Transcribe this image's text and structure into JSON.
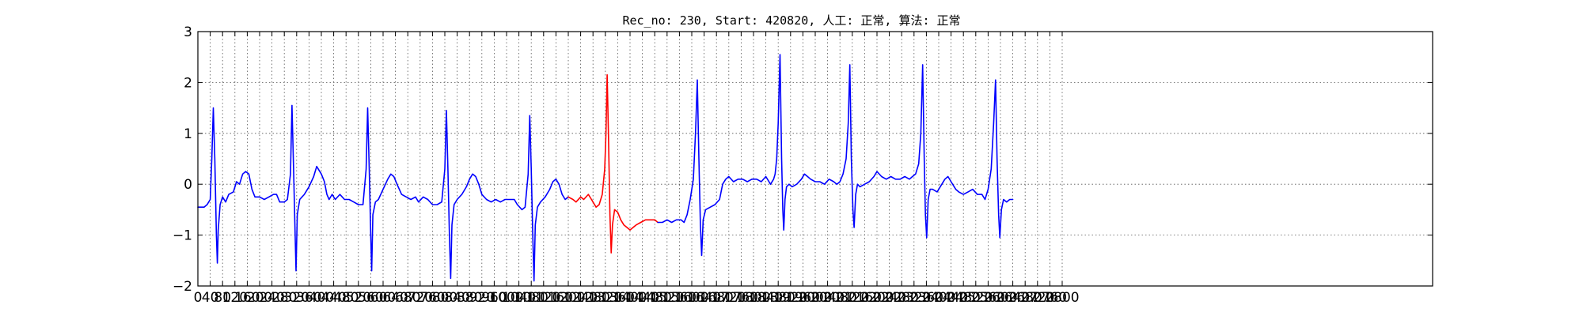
{
  "chart_data": {
    "type": "line",
    "title": "Rec_no: 230, Start: 420820, 人工: 正常, 算法: 正常",
    "xlabel": "",
    "ylabel": "",
    "xlim": [
      0,
      4000
    ],
    "ylim": [
      -2,
      3
    ],
    "grid": true,
    "yticks": [
      -2,
      -1,
      0,
      1,
      2,
      3
    ],
    "ytick_labels": [
      "−2",
      "−1",
      "0",
      "1",
      "2",
      "3"
    ],
    "xtick_step": 40,
    "xtick_max": 2800,
    "colors": {
      "normal": "#0000ff",
      "highlight": "#ff0000"
    },
    "series": [
      {
        "color": "#0000ff",
        "points": [
          [
            0,
            -0.45
          ],
          [
            20,
            -0.45
          ],
          [
            30,
            -0.4
          ],
          [
            40,
            -0.3
          ],
          [
            45,
            0.5
          ],
          [
            50,
            1.5
          ],
          [
            55,
            0.5
          ],
          [
            60,
            -1.0
          ],
          [
            63,
            -1.55
          ],
          [
            66,
            -0.9
          ],
          [
            72,
            -0.4
          ],
          [
            80,
            -0.25
          ],
          [
            90,
            -0.35
          ],
          [
            100,
            -0.2
          ],
          [
            115,
            -0.15
          ],
          [
            125,
            0.05
          ],
          [
            135,
            0.0
          ],
          [
            145,
            0.2
          ],
          [
            155,
            0.25
          ],
          [
            165,
            0.2
          ],
          [
            175,
            -0.1
          ],
          [
            185,
            -0.25
          ],
          [
            200,
            -0.25
          ],
          [
            215,
            -0.3
          ],
          [
            230,
            -0.25
          ],
          [
            245,
            -0.2
          ],
          [
            255,
            -0.2
          ],
          [
            265,
            -0.35
          ],
          [
            280,
            -0.35
          ],
          [
            290,
            -0.3
          ],
          [
            300,
            0.2
          ],
          [
            305,
            1.55
          ],
          [
            310,
            0.3
          ],
          [
            315,
            -1.0
          ],
          [
            318,
            -1.7
          ],
          [
            322,
            -0.6
          ],
          [
            330,
            -0.3
          ],
          [
            345,
            -0.2
          ],
          [
            360,
            -0.05
          ],
          [
            375,
            0.15
          ],
          [
            385,
            0.35
          ],
          [
            400,
            0.2
          ],
          [
            410,
            0.05
          ],
          [
            418,
            -0.2
          ],
          [
            425,
            -0.3
          ],
          [
            435,
            -0.2
          ],
          [
            445,
            -0.3
          ],
          [
            460,
            -0.2
          ],
          [
            475,
            -0.3
          ],
          [
            490,
            -0.3
          ],
          [
            505,
            -0.35
          ],
          [
            520,
            -0.4
          ],
          [
            535,
            -0.4
          ],
          [
            545,
            0.3
          ],
          [
            550,
            1.5
          ],
          [
            555,
            0.3
          ],
          [
            560,
            -1.0
          ],
          [
            563,
            -1.7
          ],
          [
            567,
            -0.6
          ],
          [
            575,
            -0.35
          ],
          [
            585,
            -0.3
          ],
          [
            600,
            -0.1
          ],
          [
            615,
            0.1
          ],
          [
            625,
            0.2
          ],
          [
            635,
            0.15
          ],
          [
            645,
            0.0
          ],
          [
            660,
            -0.2
          ],
          [
            675,
            -0.25
          ],
          [
            690,
            -0.3
          ],
          [
            705,
            -0.25
          ],
          [
            715,
            -0.35
          ],
          [
            730,
            -0.25
          ],
          [
            745,
            -0.3
          ],
          [
            760,
            -0.4
          ],
          [
            775,
            -0.4
          ],
          [
            790,
            -0.35
          ],
          [
            800,
            0.3
          ],
          [
            805,
            1.45
          ],
          [
            810,
            0.3
          ],
          [
            815,
            -1.0
          ],
          [
            819,
            -1.85
          ],
          [
            823,
            -0.8
          ],
          [
            830,
            -0.4
          ],
          [
            840,
            -0.3
          ],
          [
            855,
            -0.2
          ],
          [
            870,
            -0.05
          ],
          [
            880,
            0.1
          ],
          [
            890,
            0.2
          ],
          [
            900,
            0.15
          ],
          [
            910,
            0.0
          ],
          [
            920,
            -0.2
          ],
          [
            935,
            -0.3
          ],
          [
            950,
            -0.35
          ],
          [
            965,
            -0.3
          ],
          [
            980,
            -0.35
          ],
          [
            995,
            -0.3
          ],
          [
            1010,
            -0.3
          ],
          [
            1025,
            -0.3
          ],
          [
            1035,
            -0.4
          ],
          [
            1050,
            -0.5
          ],
          [
            1060,
            -0.45
          ],
          [
            1070,
            0.2
          ],
          [
            1075,
            1.35
          ],
          [
            1080,
            0.3
          ],
          [
            1085,
            -1.0
          ],
          [
            1089,
            -1.9
          ],
          [
            1093,
            -0.8
          ],
          [
            1100,
            -0.45
          ],
          [
            1110,
            -0.35
          ],
          [
            1125,
            -0.25
          ],
          [
            1140,
            -0.1
          ],
          [
            1150,
            0.05
          ],
          [
            1160,
            0.1
          ],
          [
            1170,
            0.0
          ],
          [
            1180,
            -0.2
          ],
          [
            1190,
            -0.3
          ],
          [
            1200,
            -0.25
          ]
        ]
      },
      {
        "color": "#ff0000",
        "points": [
          [
            1200,
            -0.25
          ],
          [
            1215,
            -0.3
          ],
          [
            1225,
            -0.35
          ],
          [
            1240,
            -0.25
          ],
          [
            1250,
            -0.3
          ],
          [
            1265,
            -0.2
          ],
          [
            1275,
            -0.3
          ],
          [
            1290,
            -0.45
          ],
          [
            1300,
            -0.4
          ],
          [
            1310,
            -0.2
          ],
          [
            1318,
            0.3
          ],
          [
            1322,
            1.0
          ],
          [
            1326,
            2.15
          ],
          [
            1330,
            1.0
          ],
          [
            1335,
            -0.6
          ],
          [
            1339,
            -1.35
          ],
          [
            1343,
            -0.8
          ],
          [
            1350,
            -0.5
          ],
          [
            1360,
            -0.55
          ],
          [
            1370,
            -0.7
          ],
          [
            1380,
            -0.8
          ],
          [
            1390,
            -0.85
          ],
          [
            1400,
            -0.9
          ],
          [
            1410,
            -0.85
          ],
          [
            1420,
            -0.8
          ],
          [
            1435,
            -0.75
          ],
          [
            1450,
            -0.7
          ],
          [
            1465,
            -0.7
          ],
          [
            1480,
            -0.7
          ],
          [
            1490,
            -0.75
          ]
        ]
      },
      {
        "color": "#0000ff",
        "points": [
          [
            1490,
            -0.75
          ],
          [
            1505,
            -0.75
          ],
          [
            1520,
            -0.7
          ],
          [
            1535,
            -0.75
          ],
          [
            1550,
            -0.7
          ],
          [
            1565,
            -0.7
          ],
          [
            1575,
            -0.75
          ],
          [
            1585,
            -0.6
          ],
          [
            1595,
            -0.3
          ],
          [
            1605,
            0.1
          ],
          [
            1612,
            1.0
          ],
          [
            1618,
            2.05
          ],
          [
            1623,
            0.5
          ],
          [
            1628,
            -0.8
          ],
          [
            1632,
            -1.4
          ],
          [
            1637,
            -0.7
          ],
          [
            1645,
            -0.5
          ],
          [
            1660,
            -0.45
          ],
          [
            1675,
            -0.4
          ],
          [
            1690,
            -0.3
          ],
          [
            1700,
            0.0
          ],
          [
            1710,
            0.1
          ],
          [
            1720,
            0.15
          ],
          [
            1735,
            0.05
          ],
          [
            1750,
            0.1
          ],
          [
            1765,
            0.1
          ],
          [
            1780,
            0.05
          ],
          [
            1795,
            0.1
          ],
          [
            1810,
            0.1
          ],
          [
            1825,
            0.05
          ],
          [
            1840,
            0.15
          ],
          [
            1855,
            0.0
          ],
          [
            1865,
            0.1
          ],
          [
            1870,
            0.2
          ],
          [
            1875,
            0.5
          ],
          [
            1880,
            1.2
          ],
          [
            1886,
            2.55
          ],
          [
            1891,
            0.5
          ],
          [
            1895,
            -0.5
          ],
          [
            1898,
            -0.9
          ],
          [
            1902,
            -0.3
          ],
          [
            1907,
            -0.05
          ],
          [
            1915,
            0.0
          ],
          [
            1925,
            -0.05
          ],
          [
            1940,
            0.0
          ],
          [
            1955,
            0.1
          ],
          [
            1965,
            0.2
          ],
          [
            1975,
            0.15
          ],
          [
            1985,
            0.1
          ],
          [
            2000,
            0.05
          ],
          [
            2015,
            0.05
          ],
          [
            2030,
            0.0
          ],
          [
            2045,
            0.1
          ],
          [
            2060,
            0.05
          ],
          [
            2070,
            0.0
          ],
          [
            2080,
            0.05
          ],
          [
            2090,
            0.2
          ],
          [
            2100,
            0.5
          ],
          [
            2107,
            1.2
          ],
          [
            2112,
            2.35
          ],
          [
            2117,
            0.5
          ],
          [
            2122,
            -0.5
          ],
          [
            2126,
            -0.85
          ],
          [
            2131,
            -0.2
          ],
          [
            2137,
            0.0
          ],
          [
            2145,
            -0.05
          ],
          [
            2160,
            0.0
          ],
          [
            2175,
            0.05
          ],
          [
            2190,
            0.15
          ],
          [
            2200,
            0.25
          ],
          [
            2215,
            0.15
          ],
          [
            2230,
            0.1
          ],
          [
            2245,
            0.15
          ],
          [
            2260,
            0.1
          ],
          [
            2275,
            0.1
          ],
          [
            2290,
            0.15
          ],
          [
            2305,
            0.1
          ],
          [
            2315,
            0.15
          ],
          [
            2325,
            0.2
          ],
          [
            2335,
            0.4
          ],
          [
            2342,
            1.0
          ],
          [
            2348,
            2.35
          ],
          [
            2353,
            0.5
          ],
          [
            2357,
            -0.6
          ],
          [
            2361,
            -1.05
          ],
          [
            2366,
            -0.3
          ],
          [
            2372,
            -0.1
          ],
          [
            2380,
            -0.1
          ],
          [
            2395,
            -0.15
          ],
          [
            2410,
            0.0
          ],
          [
            2420,
            0.1
          ],
          [
            2430,
            0.15
          ],
          [
            2440,
            0.05
          ],
          [
            2455,
            -0.1
          ],
          [
            2465,
            -0.15
          ],
          [
            2480,
            -0.2
          ],
          [
            2495,
            -0.15
          ],
          [
            2510,
            -0.1
          ],
          [
            2525,
            -0.2
          ],
          [
            2540,
            -0.2
          ],
          [
            2550,
            -0.3
          ],
          [
            2560,
            -0.1
          ],
          [
            2570,
            0.3
          ],
          [
            2578,
            1.2
          ],
          [
            2584,
            2.05
          ],
          [
            2589,
            0.5
          ],
          [
            2594,
            -0.6
          ],
          [
            2598,
            -1.05
          ],
          [
            2603,
            -0.5
          ],
          [
            2610,
            -0.3
          ],
          [
            2620,
            -0.35
          ],
          [
            2630,
            -0.3
          ],
          [
            2640,
            -0.3
          ]
        ]
      }
    ]
  }
}
